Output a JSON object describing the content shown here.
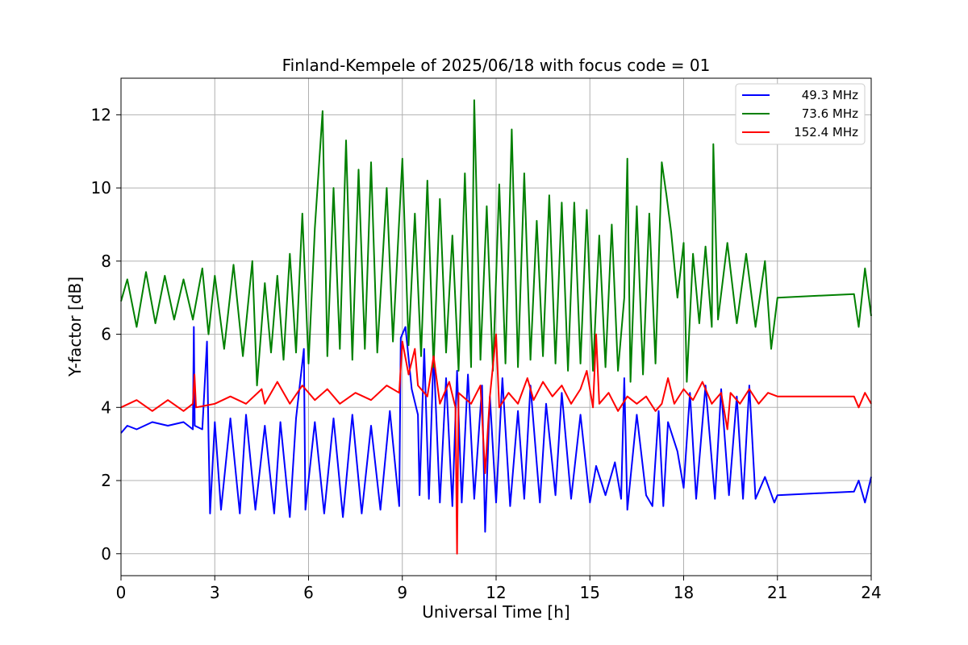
{
  "chart_data": {
    "type": "line",
    "title": "Finland-Kempele of 2025/06/18 with focus code = 01",
    "xlabel": "Universal Time [h]",
    "ylabel": "Y-factor [dB]",
    "xlim": [
      0,
      24
    ],
    "ylim": [
      -0.6,
      13
    ],
    "xticks": [
      0,
      3,
      6,
      9,
      12,
      15,
      18,
      21,
      24
    ],
    "yticks": [
      0,
      2,
      4,
      6,
      8,
      10,
      12
    ],
    "grid": true,
    "legend_position": "top-right",
    "series": [
      {
        "name": "49.3 MHz",
        "color": "#0000ff",
        "values": [
          [
            0,
            3.3
          ],
          [
            0.2,
            3.5
          ],
          [
            0.5,
            3.4
          ],
          [
            1,
            3.6
          ],
          [
            1.5,
            3.5
          ],
          [
            2,
            3.6
          ],
          [
            2.3,
            3.4
          ],
          [
            2.33,
            6.2
          ],
          [
            2.36,
            3.5
          ],
          [
            2.6,
            3.4
          ],
          [
            2.75,
            5.8
          ],
          [
            2.8,
            3.2
          ],
          [
            2.85,
            1.1
          ],
          [
            3,
            3.6
          ],
          [
            3.2,
            1.2
          ],
          [
            3.5,
            3.7
          ],
          [
            3.8,
            1.1
          ],
          [
            4,
            3.8
          ],
          [
            4.3,
            1.2
          ],
          [
            4.6,
            3.5
          ],
          [
            4.9,
            1.1
          ],
          [
            5.1,
            3.6
          ],
          [
            5.4,
            1.0
          ],
          [
            5.6,
            3.7
          ],
          [
            5.85,
            5.6
          ],
          [
            5.9,
            1.2
          ],
          [
            6.2,
            3.6
          ],
          [
            6.5,
            1.1
          ],
          [
            6.8,
            3.7
          ],
          [
            7.1,
            1.0
          ],
          [
            7.4,
            3.8
          ],
          [
            7.7,
            1.1
          ],
          [
            8.0,
            3.5
          ],
          [
            8.3,
            1.2
          ],
          [
            8.6,
            3.9
          ],
          [
            8.9,
            1.3
          ],
          [
            8.95,
            5.9
          ],
          [
            9.1,
            6.2
          ],
          [
            9.3,
            4.5
          ],
          [
            9.5,
            3.8
          ],
          [
            9.55,
            1.6
          ],
          [
            9.7,
            5.6
          ],
          [
            9.85,
            1.5
          ],
          [
            10.0,
            5.5
          ],
          [
            10.2,
            1.4
          ],
          [
            10.4,
            4.8
          ],
          [
            10.6,
            1.3
          ],
          [
            10.75,
            5.0
          ],
          [
            10.9,
            1.4
          ],
          [
            11.1,
            4.9
          ],
          [
            11.3,
            1.5
          ],
          [
            11.55,
            4.6
          ],
          [
            11.65,
            0.6
          ],
          [
            11.8,
            4.3
          ],
          [
            12.0,
            1.4
          ],
          [
            12.2,
            4.8
          ],
          [
            12.45,
            1.3
          ],
          [
            12.7,
            3.9
          ],
          [
            12.9,
            1.5
          ],
          [
            13.1,
            4.6
          ],
          [
            13.4,
            1.4
          ],
          [
            13.6,
            4.1
          ],
          [
            13.9,
            1.6
          ],
          [
            14.1,
            4.4
          ],
          [
            14.4,
            1.5
          ],
          [
            14.7,
            3.8
          ],
          [
            15.0,
            1.4
          ],
          [
            15.2,
            2.4
          ],
          [
            15.5,
            1.6
          ],
          [
            15.8,
            2.5
          ],
          [
            16.0,
            1.5
          ],
          [
            16.1,
            4.8
          ],
          [
            16.2,
            1.2
          ],
          [
            16.5,
            3.8
          ],
          [
            16.8,
            1.6
          ],
          [
            17.0,
            1.3
          ],
          [
            17.2,
            3.9
          ],
          [
            17.35,
            1.3
          ],
          [
            17.5,
            3.6
          ],
          [
            17.8,
            2.8
          ],
          [
            18.0,
            1.8
          ],
          [
            18.2,
            4.4
          ],
          [
            18.4,
            1.5
          ],
          [
            18.7,
            4.6
          ],
          [
            19.0,
            1.5
          ],
          [
            19.2,
            4.5
          ],
          [
            19.45,
            1.6
          ],
          [
            19.7,
            4.3
          ],
          [
            19.9,
            1.5
          ],
          [
            20.1,
            4.6
          ],
          [
            20.3,
            1.5
          ],
          [
            20.6,
            2.1
          ],
          [
            20.9,
            1.4
          ],
          [
            21.0,
            1.6
          ],
          [
            23.45,
            1.7
          ],
          [
            23.6,
            2.0
          ],
          [
            23.8,
            1.4
          ],
          [
            24.0,
            2.1
          ]
        ]
      },
      {
        "name": "73.6 MHz",
        "color": "#008000",
        "values": [
          [
            0,
            6.9
          ],
          [
            0.2,
            7.5
          ],
          [
            0.5,
            6.2
          ],
          [
            0.8,
            7.7
          ],
          [
            1.1,
            6.3
          ],
          [
            1.4,
            7.6
          ],
          [
            1.7,
            6.4
          ],
          [
            2.0,
            7.5
          ],
          [
            2.3,
            6.4
          ],
          [
            2.6,
            7.8
          ],
          [
            2.8,
            6.0
          ],
          [
            3.0,
            7.6
          ],
          [
            3.3,
            5.6
          ],
          [
            3.6,
            7.9
          ],
          [
            3.9,
            5.4
          ],
          [
            4.2,
            8.0
          ],
          [
            4.35,
            4.6
          ],
          [
            4.6,
            7.4
          ],
          [
            4.8,
            5.5
          ],
          [
            5.0,
            7.6
          ],
          [
            5.2,
            5.3
          ],
          [
            5.4,
            8.2
          ],
          [
            5.6,
            5.5
          ],
          [
            5.8,
            9.3
          ],
          [
            6.0,
            5.2
          ],
          [
            6.2,
            8.9
          ],
          [
            6.45,
            12.1
          ],
          [
            6.6,
            5.4
          ],
          [
            6.8,
            10.0
          ],
          [
            7.0,
            5.6
          ],
          [
            7.2,
            11.3
          ],
          [
            7.4,
            5.3
          ],
          [
            7.6,
            10.5
          ],
          [
            7.8,
            5.6
          ],
          [
            8.0,
            10.7
          ],
          [
            8.2,
            5.5
          ],
          [
            8.5,
            10.0
          ],
          [
            8.7,
            5.8
          ],
          [
            9.0,
            10.8
          ],
          [
            9.2,
            5.7
          ],
          [
            9.4,
            9.3
          ],
          [
            9.6,
            5.4
          ],
          [
            9.8,
            10.2
          ],
          [
            10.0,
            5.1
          ],
          [
            10.2,
            9.7
          ],
          [
            10.4,
            5.5
          ],
          [
            10.6,
            8.7
          ],
          [
            10.8,
            5.0
          ],
          [
            11.0,
            10.4
          ],
          [
            11.2,
            5.1
          ],
          [
            11.3,
            12.4
          ],
          [
            11.5,
            5.3
          ],
          [
            11.7,
            9.5
          ],
          [
            11.9,
            5.0
          ],
          [
            12.1,
            10.1
          ],
          [
            12.3,
            5.2
          ],
          [
            12.5,
            11.6
          ],
          [
            12.7,
            5.1
          ],
          [
            12.9,
            10.4
          ],
          [
            13.1,
            5.3
          ],
          [
            13.3,
            9.1
          ],
          [
            13.5,
            5.4
          ],
          [
            13.7,
            9.8
          ],
          [
            13.9,
            5.2
          ],
          [
            14.1,
            9.6
          ],
          [
            14.3,
            5.0
          ],
          [
            14.5,
            9.6
          ],
          [
            14.7,
            5.2
          ],
          [
            14.9,
            9.4
          ],
          [
            15.1,
            5.0
          ],
          [
            15.3,
            8.7
          ],
          [
            15.5,
            5.1
          ],
          [
            15.7,
            9.0
          ],
          [
            15.9,
            5.0
          ],
          [
            16.1,
            7.0
          ],
          [
            16.2,
            10.8
          ],
          [
            16.3,
            4.7
          ],
          [
            16.5,
            9.5
          ],
          [
            16.7,
            4.9
          ],
          [
            16.9,
            9.3
          ],
          [
            17.1,
            5.2
          ],
          [
            17.3,
            10.7
          ],
          [
            17.45,
            9.8
          ],
          [
            17.6,
            8.8
          ],
          [
            17.8,
            7.0
          ],
          [
            18.0,
            8.5
          ],
          [
            18.1,
            4.7
          ],
          [
            18.3,
            8.2
          ],
          [
            18.5,
            6.3
          ],
          [
            18.7,
            8.4
          ],
          [
            18.9,
            6.2
          ],
          [
            18.95,
            11.2
          ],
          [
            19.1,
            6.4
          ],
          [
            19.4,
            8.5
          ],
          [
            19.7,
            6.3
          ],
          [
            20.0,
            8.2
          ],
          [
            20.3,
            6.2
          ],
          [
            20.6,
            8.0
          ],
          [
            20.8,
            5.6
          ],
          [
            21.0,
            7.0
          ],
          [
            23.45,
            7.1
          ],
          [
            23.6,
            6.2
          ],
          [
            23.8,
            7.8
          ],
          [
            24.0,
            6.5
          ]
        ]
      },
      {
        "name": "152.4 MHz",
        "color": "#ff0000",
        "values": [
          [
            0,
            4.0
          ],
          [
            0.5,
            4.2
          ],
          [
            1,
            3.9
          ],
          [
            1.5,
            4.2
          ],
          [
            2,
            3.9
          ],
          [
            2.3,
            4.1
          ],
          [
            2.35,
            4.9
          ],
          [
            2.4,
            4.0
          ],
          [
            3,
            4.1
          ],
          [
            3.5,
            4.3
          ],
          [
            4,
            4.1
          ],
          [
            4.5,
            4.5
          ],
          [
            4.6,
            4.1
          ],
          [
            5,
            4.7
          ],
          [
            5.4,
            4.1
          ],
          [
            5.8,
            4.6
          ],
          [
            6.2,
            4.2
          ],
          [
            6.6,
            4.5
          ],
          [
            7,
            4.1
          ],
          [
            7.5,
            4.4
          ],
          [
            8,
            4.2
          ],
          [
            8.5,
            4.6
          ],
          [
            8.9,
            4.4
          ],
          [
            9,
            5.8
          ],
          [
            9.2,
            4.9
          ],
          [
            9.4,
            5.6
          ],
          [
            9.5,
            4.6
          ],
          [
            9.8,
            4.3
          ],
          [
            10.0,
            5.4
          ],
          [
            10.2,
            4.1
          ],
          [
            10.5,
            4.7
          ],
          [
            10.7,
            4.0
          ],
          [
            10.75,
            0.0
          ],
          [
            10.8,
            4.4
          ],
          [
            11.2,
            4.1
          ],
          [
            11.5,
            4.6
          ],
          [
            11.65,
            2.2
          ],
          [
            11.8,
            4.3
          ],
          [
            12.0,
            6.0
          ],
          [
            12.1,
            4.0
          ],
          [
            12.4,
            4.4
          ],
          [
            12.7,
            4.1
          ],
          [
            13.0,
            4.8
          ],
          [
            13.2,
            4.2
          ],
          [
            13.5,
            4.7
          ],
          [
            13.8,
            4.3
          ],
          [
            14.1,
            4.6
          ],
          [
            14.4,
            4.1
          ],
          [
            14.7,
            4.5
          ],
          [
            14.9,
            5.0
          ],
          [
            15.1,
            4.0
          ],
          [
            15.2,
            6.0
          ],
          [
            15.3,
            4.1
          ],
          [
            15.6,
            4.4
          ],
          [
            15.9,
            3.9
          ],
          [
            16.2,
            4.3
          ],
          [
            16.5,
            4.1
          ],
          [
            16.8,
            4.3
          ],
          [
            17.1,
            3.9
          ],
          [
            17.3,
            4.1
          ],
          [
            17.5,
            4.8
          ],
          [
            17.7,
            4.1
          ],
          [
            18.0,
            4.5
          ],
          [
            18.3,
            4.2
          ],
          [
            18.6,
            4.7
          ],
          [
            18.9,
            4.1
          ],
          [
            19.2,
            4.4
          ],
          [
            19.4,
            3.4
          ],
          [
            19.5,
            4.4
          ],
          [
            19.8,
            4.1
          ],
          [
            20.1,
            4.5
          ],
          [
            20.4,
            4.1
          ],
          [
            20.7,
            4.4
          ],
          [
            21.0,
            4.3
          ],
          [
            23.45,
            4.3
          ],
          [
            23.6,
            4.0
          ],
          [
            23.8,
            4.4
          ],
          [
            24.0,
            4.1
          ]
        ]
      }
    ]
  }
}
